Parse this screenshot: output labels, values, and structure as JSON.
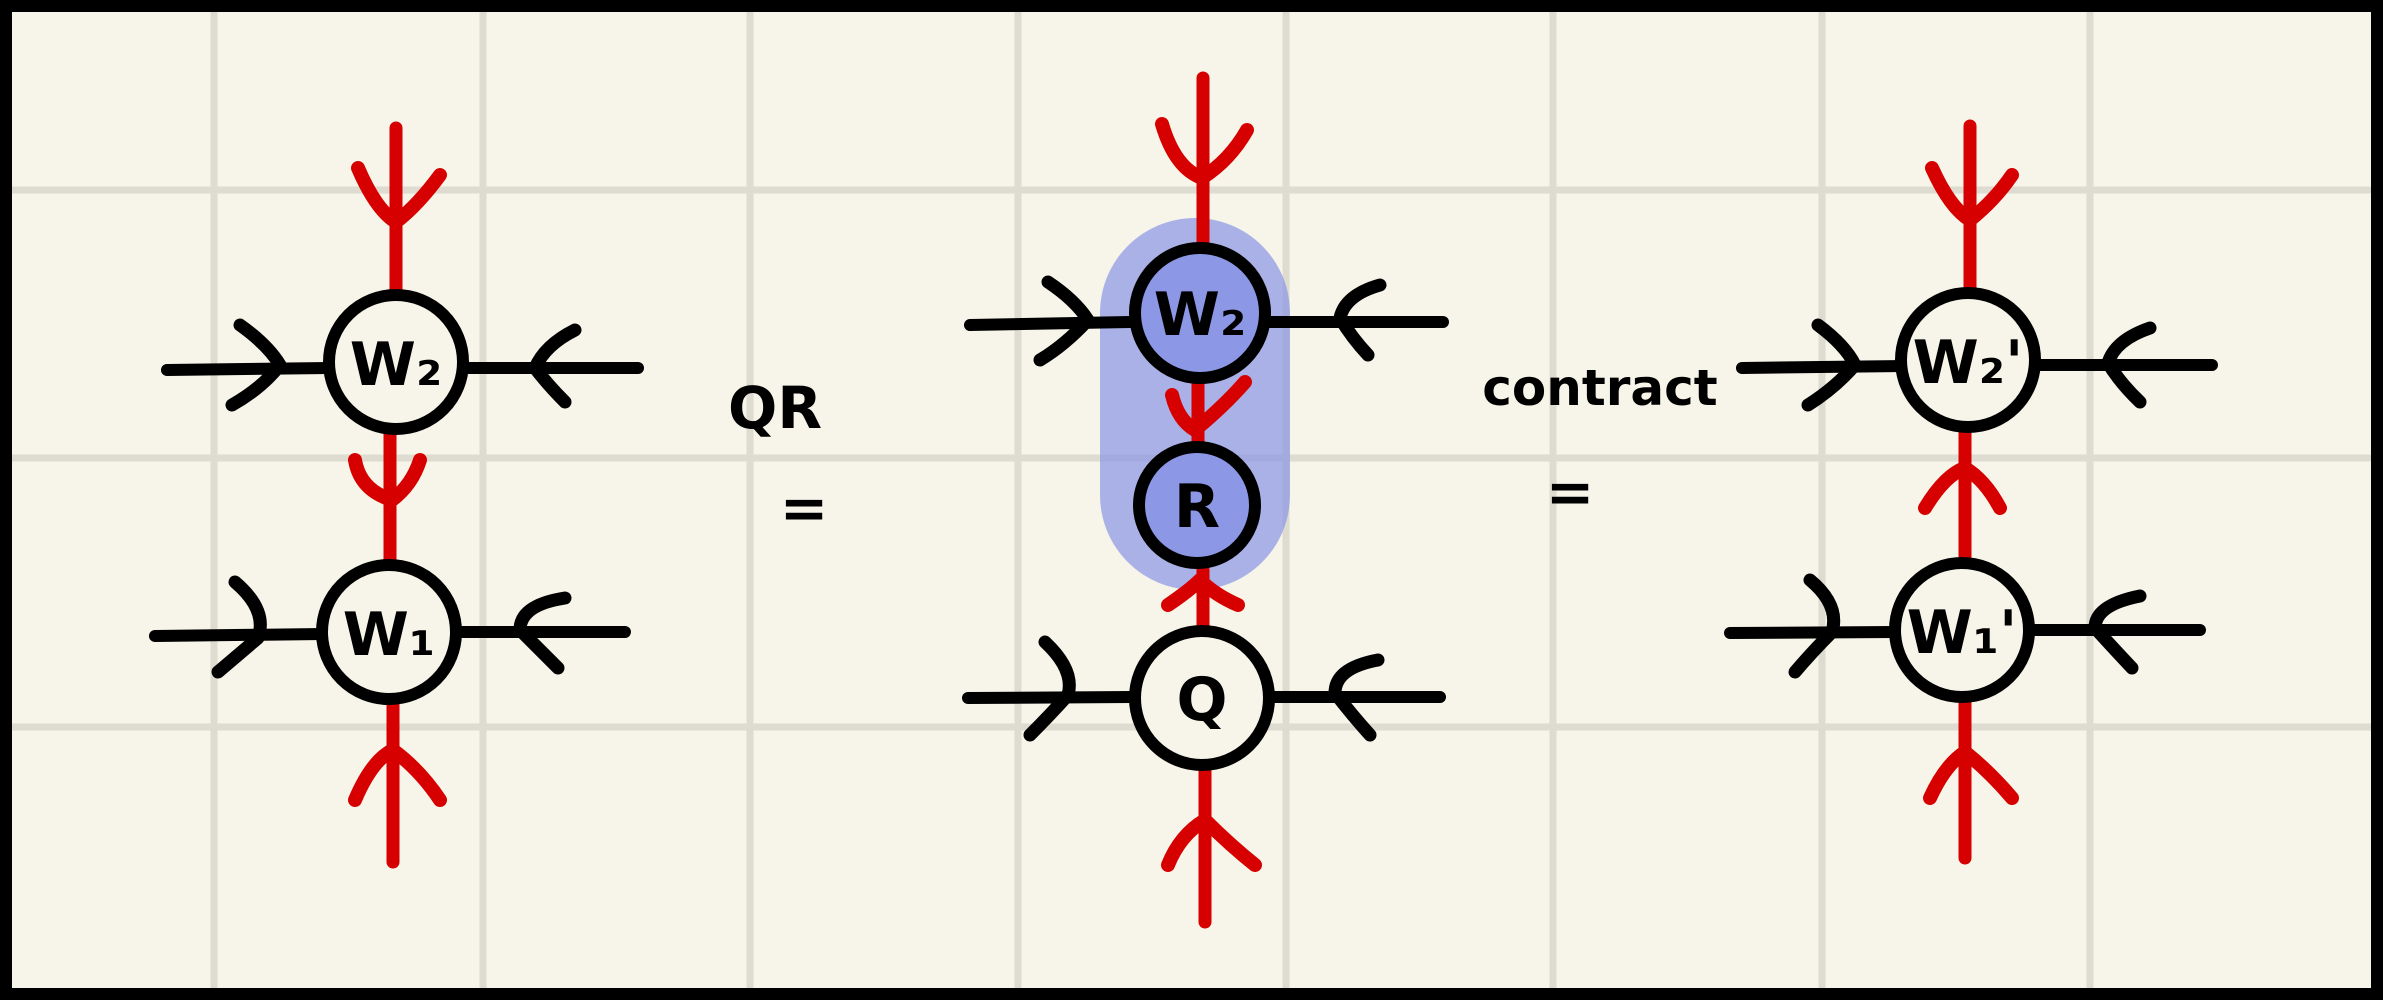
{
  "colors": {
    "background": "#f7f5e9",
    "grid": "#dedcd0",
    "border": "#000000",
    "ink": "#000000",
    "red_leg": "#d60000",
    "highlight": "#8c97e6"
  },
  "diagram": {
    "left_network": {
      "top_tensor": "W₂",
      "bottom_tensor": "W₁"
    },
    "operation_1": {
      "label": "QR",
      "symbol": "="
    },
    "middle_network": {
      "top_tensor": "W₂",
      "middle_tensor": "R",
      "bottom_tensor": "Q"
    },
    "operation_2": {
      "label": "contract",
      "symbol": "="
    },
    "right_network": {
      "top_tensor": "W₂'",
      "bottom_tensor": "W₁'"
    }
  }
}
